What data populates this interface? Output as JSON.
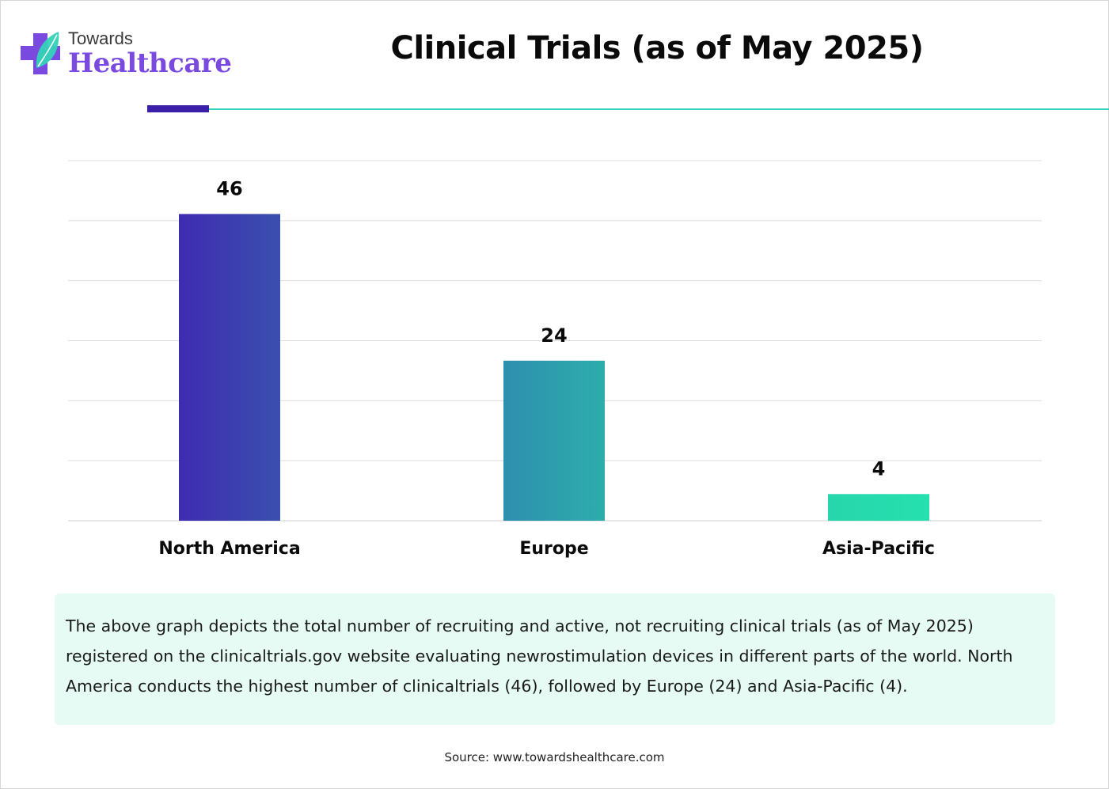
{
  "brand": {
    "line1": "Towards",
    "line2": "Healthcare",
    "icon": "medical-cross-leaf-icon",
    "colors": {
      "purple": "#7a4ae0",
      "teal": "#33d2b8",
      "navy": "#3b1fa8"
    }
  },
  "title": "Clinical Trials (as of May 2025)",
  "chart_data": {
    "type": "bar",
    "categories": [
      "North America",
      "Europe",
      "Asia-Pacific"
    ],
    "values": [
      46,
      24,
      4
    ],
    "data_labels": [
      "46",
      "24",
      "4"
    ],
    "ylim": [
      0,
      54
    ],
    "grid": true,
    "legend": "none",
    "bar_colors": [
      [
        "#3f2bb0",
        "#3b4fae"
      ],
      [
        "#2f8fae",
        "#2dadab"
      ],
      [
        "#27d6ac",
        "#26e0ae"
      ]
    ]
  },
  "description": "The above graph depicts the total number of recruiting and active, not recruiting clinical trials (as of May 2025) registered on the clinicaltrials.gov website evaluating newrostimulation devices in different parts of the world. North America conducts the highest number of clinicaltrials (46), followed by Europe (24) and Asia-Pacific (4).",
  "source": "Source: www.towardshealthcare.com"
}
